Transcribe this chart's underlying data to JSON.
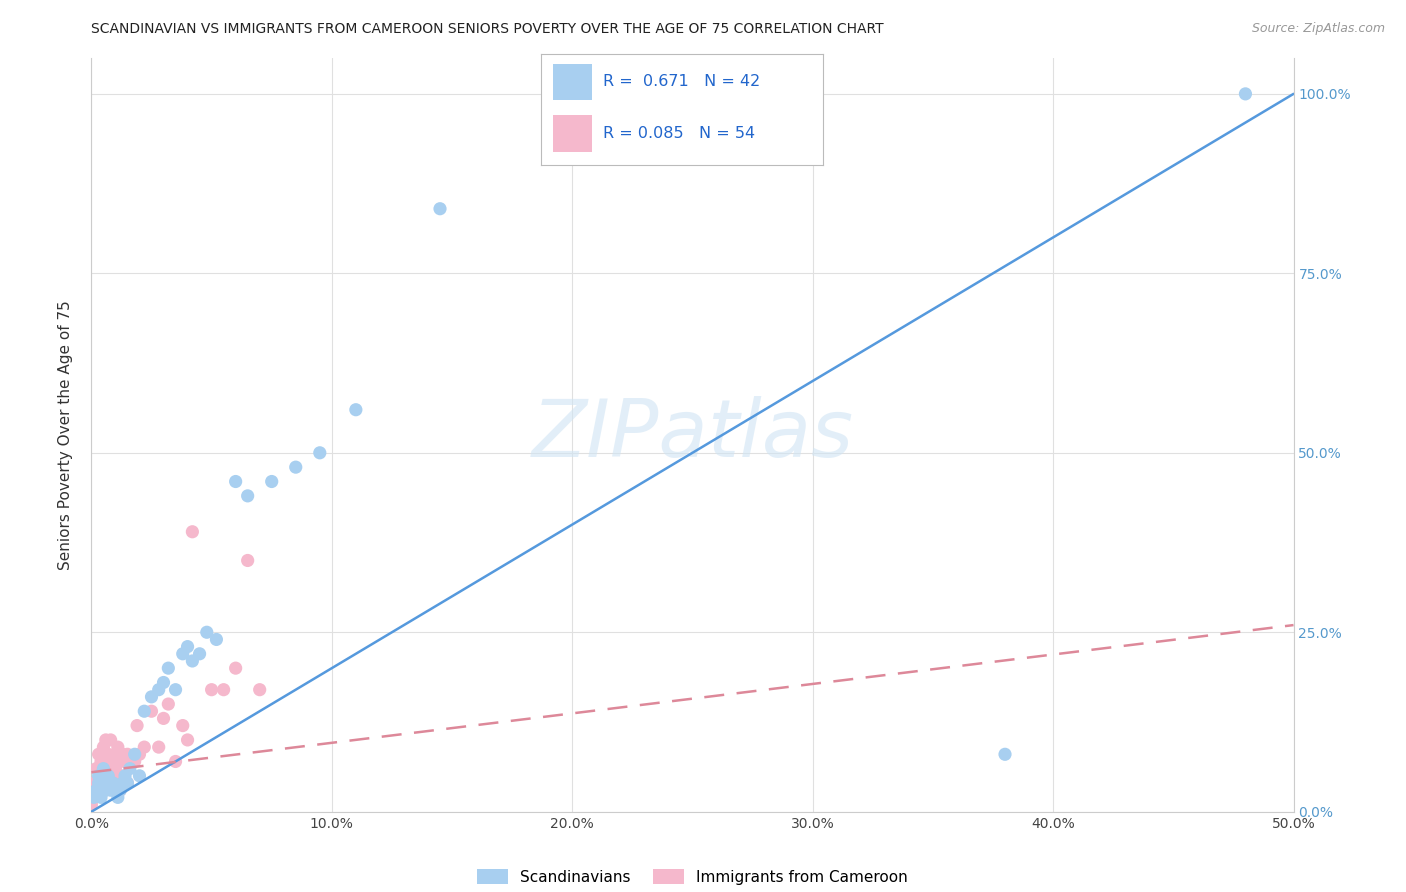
{
  "title": "SCANDINAVIAN VS IMMIGRANTS FROM CAMEROON SENIORS POVERTY OVER THE AGE OF 75 CORRELATION CHART",
  "source": "Source: ZipAtlas.com",
  "ylabel": "Seniors Poverty Over the Age of 75",
  "watermark": "ZIPatlas",
  "blue_color": "#a8cff0",
  "pink_color": "#f5b8cc",
  "blue_line_color": "#5599dd",
  "pink_line_color": "#dd8899",
  "title_color": "#222222",
  "right_axis_color": "#5599cc",
  "grid_color": "#e0e0e0",
  "legend_label_blue": "Scandinavians",
  "legend_label_pink": "Immigrants from Cameroon",
  "scandinavian_x": [
    0.001,
    0.002,
    0.003,
    0.003,
    0.004,
    0.005,
    0.005,
    0.006,
    0.007,
    0.007,
    0.008,
    0.009,
    0.01,
    0.011,
    0.012,
    0.013,
    0.014,
    0.015,
    0.016,
    0.018,
    0.02,
    0.022,
    0.025,
    0.028,
    0.03,
    0.032,
    0.035,
    0.038,
    0.04,
    0.042,
    0.045,
    0.048,
    0.052,
    0.06,
    0.065,
    0.075,
    0.085,
    0.095,
    0.11,
    0.145,
    0.38,
    0.48
  ],
  "scandinavian_y": [
    0.02,
    0.03,
    0.04,
    0.05,
    0.02,
    0.04,
    0.06,
    0.03,
    0.04,
    0.05,
    0.03,
    0.04,
    0.03,
    0.02,
    0.03,
    0.04,
    0.05,
    0.04,
    0.06,
    0.08,
    0.05,
    0.14,
    0.16,
    0.17,
    0.18,
    0.2,
    0.17,
    0.22,
    0.23,
    0.21,
    0.22,
    0.25,
    0.24,
    0.46,
    0.44,
    0.46,
    0.48,
    0.5,
    0.56,
    0.84,
    0.08,
    1.0
  ],
  "cameroon_x": [
    0.0,
    0.001,
    0.001,
    0.002,
    0.002,
    0.003,
    0.003,
    0.003,
    0.004,
    0.004,
    0.005,
    0.005,
    0.005,
    0.006,
    0.006,
    0.007,
    0.007,
    0.007,
    0.008,
    0.008,
    0.008,
    0.009,
    0.009,
    0.01,
    0.01,
    0.01,
    0.011,
    0.011,
    0.012,
    0.012,
    0.013,
    0.013,
    0.014,
    0.015,
    0.015,
    0.016,
    0.017,
    0.018,
    0.019,
    0.02,
    0.022,
    0.025,
    0.028,
    0.03,
    0.032,
    0.035,
    0.038,
    0.04,
    0.042,
    0.05,
    0.055,
    0.06,
    0.065,
    0.07
  ],
  "cameroon_y": [
    0.01,
    0.02,
    0.04,
    0.03,
    0.06,
    0.04,
    0.06,
    0.08,
    0.05,
    0.07,
    0.04,
    0.06,
    0.09,
    0.07,
    0.1,
    0.04,
    0.06,
    0.08,
    0.05,
    0.07,
    0.1,
    0.04,
    0.06,
    0.04,
    0.06,
    0.08,
    0.05,
    0.09,
    0.03,
    0.07,
    0.05,
    0.08,
    0.07,
    0.04,
    0.08,
    0.07,
    0.07,
    0.07,
    0.12,
    0.08,
    0.09,
    0.14,
    0.09,
    0.13,
    0.15,
    0.07,
    0.12,
    0.1,
    0.39,
    0.17,
    0.17,
    0.2,
    0.35,
    0.17
  ],
  "blue_line_x": [
    0.0,
    0.5
  ],
  "blue_line_y": [
    0.0,
    1.0
  ],
  "pink_line_x": [
    0.0,
    0.5
  ],
  "pink_line_y": [
    0.055,
    0.26
  ],
  "xlim": [
    0.0,
    0.5
  ],
  "ylim": [
    0.0,
    1.05
  ],
  "x_ticks": [
    0.0,
    0.1,
    0.2,
    0.3,
    0.4,
    0.5
  ],
  "x_tick_labels": [
    "0.0%",
    "10.0%",
    "20.0%",
    "30.0%",
    "40.0%",
    "50.0%"
  ],
  "y_ticks": [
    0.0,
    0.25,
    0.5,
    0.75,
    1.0
  ],
  "y_tick_labels": [
    "0.0%",
    "25.0%",
    "50.0%",
    "75.0%",
    "100.0%"
  ]
}
